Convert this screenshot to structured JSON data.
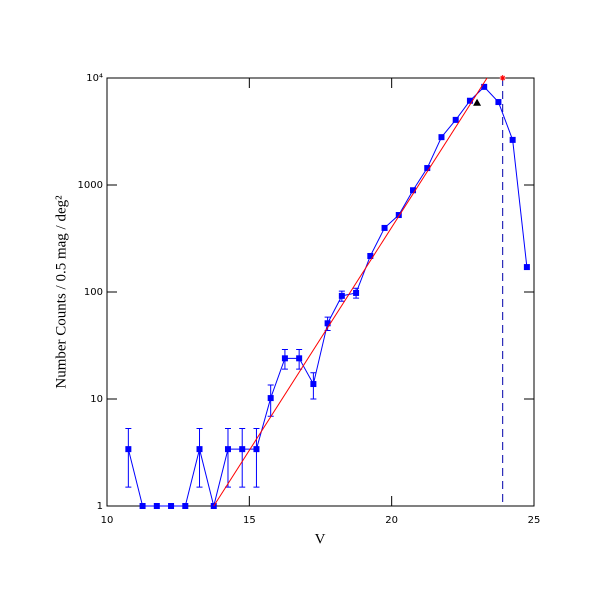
{
  "chart_data": {
    "type": "line",
    "xlabel": "V",
    "ylabel": "Number Counts / 0.5 mag / deg²",
    "xlim": [
      10,
      25
    ],
    "xticks": [
      10,
      15,
      20,
      25
    ],
    "ylim": [
      1,
      10000
    ],
    "log_y": true,
    "yticks": [
      1,
      10,
      100,
      1000,
      {
        "value": 10000,
        "label": "10⁴"
      }
    ],
    "series": [
      {
        "color": "#0000ff",
        "x": [
          10.75,
          11.25,
          11.75,
          12.25,
          12.75,
          13.25,
          13.75,
          14.25,
          14.75,
          15.25,
          15.75,
          16.25,
          16.75,
          17.25,
          17.75,
          18.25,
          18.75,
          19.25,
          19.75,
          20.25,
          20.75,
          21.25,
          21.75,
          22.25,
          22.75,
          23.25,
          23.75,
          24.25,
          24.75
        ],
        "values": [
          3.4,
          1,
          1,
          1,
          1,
          3.4,
          1,
          3.4,
          3.4,
          3.4,
          10.2,
          24,
          24,
          13.8,
          51,
          92,
          98,
          217,
          397,
          524,
          893,
          1440,
          2800,
          4060,
          6130,
          8260,
          5960,
          2640,
          171
        ],
        "errors": [
          1.9,
          null,
          null,
          null,
          null,
          1.9,
          null,
          1.9,
          1.9,
          1.9,
          3.3,
          5,
          5,
          3.8,
          7.3,
          10,
          10.4,
          null,
          null,
          null,
          null,
          null,
          null,
          null,
          null,
          null,
          null,
          null,
          null
        ]
      },
      {
        "color": "#ff0000",
        "x": [
          13.75,
          23.35
        ],
        "values": [
          1,
          10000
        ]
      }
    ],
    "triangle": {
      "x": 23,
      "value": 5870,
      "color": "#000000"
    },
    "star": {
      "x": 23.9,
      "value": 10000,
      "color": "#ff0000"
    },
    "vline": {
      "x": 23.9,
      "color": "#0000aa"
    }
  }
}
